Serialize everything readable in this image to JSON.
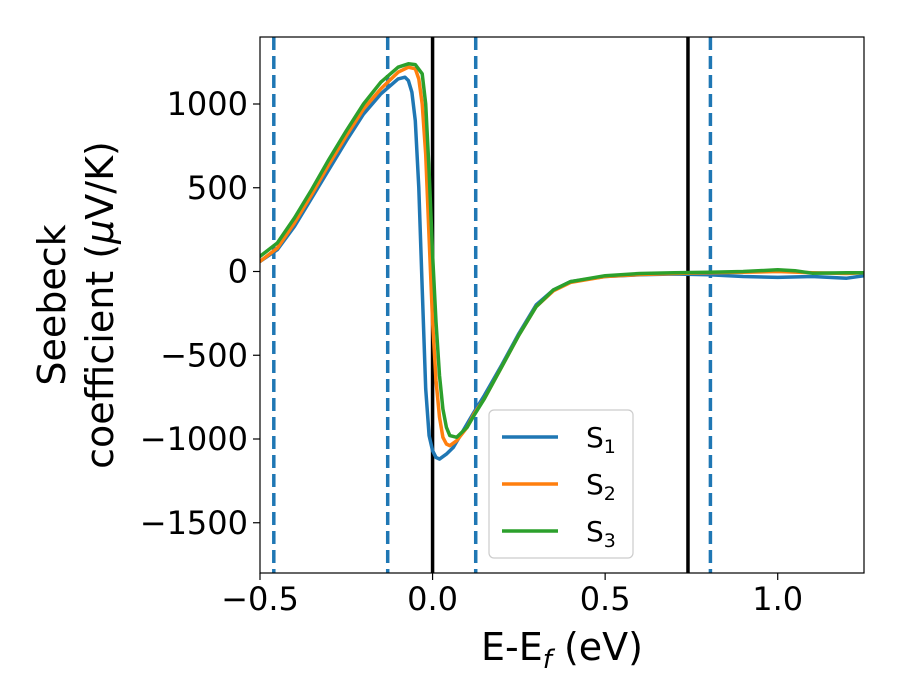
{
  "chart_data": {
    "type": "line",
    "xlabel": {
      "main": "E-E",
      "sub": "f",
      "unit": " (eV)"
    },
    "ylabel": {
      "line1": "Seebeck",
      "line2_prefix": "coefficient  (",
      "mu": "μ",
      "line2_suffix": "V/K)"
    },
    "xlim": [
      -0.5,
      1.25
    ],
    "ylim": [
      -1800,
      1400
    ],
    "xticks": [
      -0.5,
      0.0,
      0.5,
      1.0
    ],
    "xtick_labels": [
      "−0.5",
      "0.0",
      "0.5",
      "1.0"
    ],
    "yticks": [
      1000,
      500,
      0,
      -500,
      -1000,
      -1500
    ],
    "ytick_labels": [
      "1000",
      "500",
      "0",
      "−500",
      "−1000",
      "−1500"
    ],
    "grid": false,
    "legend_placement": "lower-center",
    "vlines_solid": [
      0.0,
      0.74
    ],
    "vlines_dashed": [
      -0.46,
      -0.13,
      0.125,
      0.805
    ],
    "solid_color": "#000000",
    "dashed_color": "#1f77b4",
    "series": [
      {
        "name": "S",
        "sub": "1",
        "color": "#1f77b4",
        "x": [
          -0.5,
          -0.45,
          -0.4,
          -0.35,
          -0.3,
          -0.25,
          -0.2,
          -0.15,
          -0.1,
          -0.08,
          -0.07,
          -0.06,
          -0.05,
          -0.04,
          -0.03,
          -0.02,
          -0.01,
          0.0,
          0.01,
          0.02,
          0.04,
          0.06,
          0.08,
          0.1,
          0.12,
          0.15,
          0.2,
          0.25,
          0.3,
          0.35,
          0.4,
          0.5,
          0.6,
          0.7,
          0.8,
          0.9,
          1.0,
          1.1,
          1.2,
          1.25
        ],
        "y": [
          60,
          130,
          270,
          440,
          610,
          780,
          940,
          1060,
          1150,
          1160,
          1140,
          1070,
          900,
          500,
          -100,
          -700,
          -980,
          -1070,
          -1110,
          -1120,
          -1090,
          -1050,
          -980,
          -910,
          -840,
          -740,
          -560,
          -370,
          -200,
          -110,
          -60,
          -30,
          -20,
          -15,
          -20,
          -30,
          -35,
          -30,
          -40,
          -25
        ]
      },
      {
        "name": "S",
        "sub": "2",
        "color": "#ff7f0e",
        "x": [
          -0.5,
          -0.45,
          -0.4,
          -0.35,
          -0.3,
          -0.25,
          -0.2,
          -0.15,
          -0.1,
          -0.07,
          -0.05,
          -0.04,
          -0.03,
          -0.02,
          -0.01,
          0.0,
          0.01,
          0.02,
          0.03,
          0.04,
          0.05,
          0.07,
          0.1,
          0.12,
          0.15,
          0.2,
          0.25,
          0.3,
          0.35,
          0.4,
          0.5,
          0.6,
          0.7,
          0.8,
          0.9,
          1.0,
          1.1,
          1.2,
          1.25
        ],
        "y": [
          60,
          140,
          290,
          460,
          640,
          810,
          970,
          1090,
          1190,
          1220,
          1210,
          1150,
          1000,
          700,
          200,
          -300,
          -650,
          -870,
          -990,
          -1030,
          -1040,
          -1010,
          -930,
          -850,
          -760,
          -570,
          -380,
          -210,
          -115,
          -65,
          -30,
          -18,
          -12,
          -8,
          -5,
          0,
          -8,
          -12,
          -8
        ]
      },
      {
        "name": "S",
        "sub": "3",
        "color": "#2ca02c",
        "x": [
          -0.5,
          -0.45,
          -0.4,
          -0.35,
          -0.3,
          -0.25,
          -0.2,
          -0.15,
          -0.1,
          -0.07,
          -0.05,
          -0.03,
          -0.02,
          -0.01,
          0.0,
          0.01,
          0.02,
          0.03,
          0.04,
          0.05,
          0.07,
          0.1,
          0.12,
          0.15,
          0.2,
          0.25,
          0.3,
          0.35,
          0.4,
          0.5,
          0.6,
          0.7,
          0.8,
          0.9,
          1.0,
          1.05,
          1.1,
          1.2,
          1.25
        ],
        "y": [
          90,
          170,
          320,
          490,
          670,
          840,
          1000,
          1130,
          1220,
          1240,
          1235,
          1180,
          1000,
          600,
          100,
          -300,
          -620,
          -820,
          -930,
          -980,
          -990,
          -930,
          -860,
          -760,
          -570,
          -380,
          -210,
          -110,
          -60,
          -25,
          -12,
          -8,
          -4,
          0,
          10,
          5,
          -10,
          -8,
          -8
        ]
      }
    ]
  }
}
